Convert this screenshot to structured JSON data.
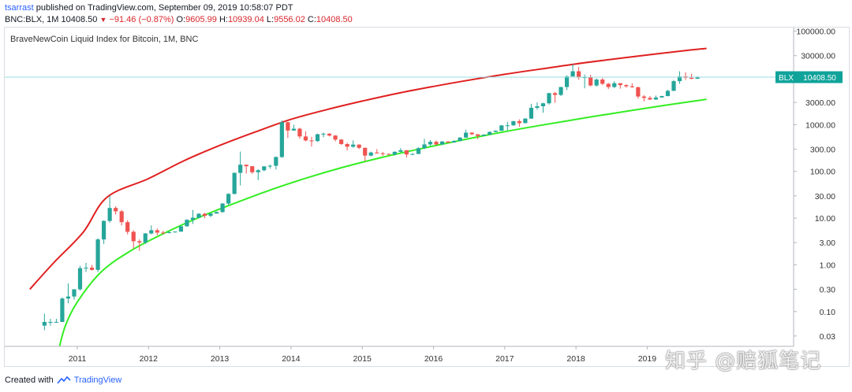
{
  "header": {
    "author": "tsarrast",
    "published_text": "published on TradingView.com, September 09, 2019 10:58:07 PDT",
    "symbol": "BNC:BLX, 1M",
    "last": "10408.50",
    "change_arrow": "▼",
    "change": "−91.46 (−0.87%)",
    "o_label": "O:",
    "o_value": "9605.99",
    "h_label": "H:",
    "h_value": "10939.04",
    "l_label": "L:",
    "l_value": "9556.02",
    "c_label": "C:",
    "c_value": "10408.50"
  },
  "chart_title": "BraveNewCoin Liquid Index for Bitcoin, 1M, BNC",
  "footer": {
    "created_with": "Created with",
    "brand": "TradingView"
  },
  "watermark": "知乎 @赔狐笔记",
  "colors": {
    "up": "#26a69a",
    "down": "#ef5350",
    "upper_curve": "#e02020",
    "lower_curve": "#33ee22",
    "price_line": "#9adbe0",
    "price_tag": "#0fa39a",
    "axis_text": "#333333"
  },
  "chart_data": {
    "type": "candlestick",
    "scale": "log",
    "title": "BraveNewCoin Liquid Index for Bitcoin, 1M, BNC",
    "x_ticks": [
      "2011",
      "2012",
      "2013",
      "2014",
      "2015",
      "2016",
      "2017",
      "2018",
      "2019"
    ],
    "y_ticks": [
      "100000.00",
      "30000.00",
      "10000.00",
      "3000.00",
      "1000.00",
      "300.00",
      "100.00",
      "30.00",
      "10.00",
      "3.00",
      "1.00",
      "0.30",
      "0.10",
      "0.03"
    ],
    "y_tick_values": [
      100000,
      30000,
      10000,
      3000,
      1000,
      300,
      100,
      30,
      10,
      3,
      1,
      0.3,
      0.1,
      0.03
    ],
    "x_range": [
      "2010-04",
      "2019-12"
    ],
    "y_range": [
      0.018,
      120000
    ],
    "last_price_tag": {
      "symbol": "BLX",
      "value": "10408.50"
    },
    "candles": [
      {
        "t": "2010-07",
        "o": 0.05,
        "h": 0.09,
        "l": 0.04,
        "c": 0.06
      },
      {
        "t": "2010-08",
        "o": 0.06,
        "h": 0.07,
        "l": 0.05,
        "c": 0.06
      },
      {
        "t": "2010-09",
        "o": 0.06,
        "h": 0.07,
        "l": 0.06,
        "c": 0.06
      },
      {
        "t": "2010-10",
        "o": 0.06,
        "h": 0.2,
        "l": 0.06,
        "c": 0.19
      },
      {
        "t": "2010-11",
        "o": 0.19,
        "h": 0.4,
        "l": 0.15,
        "c": 0.21
      },
      {
        "t": "2010-12",
        "o": 0.21,
        "h": 0.3,
        "l": 0.18,
        "c": 0.3
      },
      {
        "t": "2011-01",
        "o": 0.3,
        "h": 0.95,
        "l": 0.28,
        "c": 0.85
      },
      {
        "t": "2011-02",
        "o": 0.85,
        "h": 1.1,
        "l": 0.7,
        "c": 0.87
      },
      {
        "t": "2011-03",
        "o": 0.87,
        "h": 1.0,
        "l": 0.75,
        "c": 0.78
      },
      {
        "t": "2011-04",
        "o": 0.78,
        "h": 3.7,
        "l": 0.7,
        "c": 3.5
      },
      {
        "t": "2011-05",
        "o": 3.5,
        "h": 9.0,
        "l": 2.8,
        "c": 8.7
      },
      {
        "t": "2011-06",
        "o": 8.7,
        "h": 30.0,
        "l": 8.0,
        "c": 16.5
      },
      {
        "t": "2011-07",
        "o": 16.5,
        "h": 18.0,
        "l": 12.0,
        "c": 14.0
      },
      {
        "t": "2011-08",
        "o": 14.0,
        "h": 15.0,
        "l": 7.0,
        "c": 8.2
      },
      {
        "t": "2011-09",
        "o": 8.2,
        "h": 9.0,
        "l": 4.5,
        "c": 5.1
      },
      {
        "t": "2011-10",
        "o": 5.1,
        "h": 5.5,
        "l": 2.2,
        "c": 3.2
      },
      {
        "t": "2011-11",
        "o": 3.2,
        "h": 3.5,
        "l": 2.0,
        "c": 3.0
      },
      {
        "t": "2011-12",
        "o": 3.0,
        "h": 4.8,
        "l": 2.8,
        "c": 4.7
      },
      {
        "t": "2012-01",
        "o": 4.7,
        "h": 7.0,
        "l": 4.5,
        "c": 5.5
      },
      {
        "t": "2012-02",
        "o": 5.5,
        "h": 6.0,
        "l": 4.3,
        "c": 4.9
      },
      {
        "t": "2012-03",
        "o": 4.9,
        "h": 5.4,
        "l": 4.5,
        "c": 4.8
      },
      {
        "t": "2012-04",
        "o": 4.8,
        "h": 5.3,
        "l": 4.7,
        "c": 5.0
      },
      {
        "t": "2012-05",
        "o": 5.0,
        "h": 5.2,
        "l": 4.9,
        "c": 5.15
      },
      {
        "t": "2012-06",
        "o": 5.15,
        "h": 6.8,
        "l": 5.1,
        "c": 6.7
      },
      {
        "t": "2012-07",
        "o": 6.7,
        "h": 9.5,
        "l": 6.5,
        "c": 9.2
      },
      {
        "t": "2012-08",
        "o": 9.2,
        "h": 15.0,
        "l": 7.5,
        "c": 10.2
      },
      {
        "t": "2012-09",
        "o": 10.2,
        "h": 12.8,
        "l": 10.0,
        "c": 12.4
      },
      {
        "t": "2012-10",
        "o": 12.4,
        "h": 12.9,
        "l": 10.0,
        "c": 11.2
      },
      {
        "t": "2012-11",
        "o": 11.2,
        "h": 12.8,
        "l": 10.5,
        "c": 12.5
      },
      {
        "t": "2012-12",
        "o": 12.5,
        "h": 13.8,
        "l": 12.5,
        "c": 13.5
      },
      {
        "t": "2013-01",
        "o": 13.5,
        "h": 21.0,
        "l": 13.0,
        "c": 20.5
      },
      {
        "t": "2013-02",
        "o": 20.5,
        "h": 34.0,
        "l": 19.0,
        "c": 33.0
      },
      {
        "t": "2013-03",
        "o": 33.0,
        "h": 95.0,
        "l": 32.0,
        "c": 93.0
      },
      {
        "t": "2013-04",
        "o": 93.0,
        "h": 266.0,
        "l": 50.0,
        "c": 139.0
      },
      {
        "t": "2013-05",
        "o": 139.0,
        "h": 140.0,
        "l": 90.0,
        "c": 129.0
      },
      {
        "t": "2013-06",
        "o": 129.0,
        "h": 130.0,
        "l": 89.0,
        "c": 96.0
      },
      {
        "t": "2013-07",
        "o": 96.0,
        "h": 112.0,
        "l": 65.0,
        "c": 106.0
      },
      {
        "t": "2013-08",
        "o": 106.0,
        "h": 130.0,
        "l": 100.0,
        "c": 128.0
      },
      {
        "t": "2013-09",
        "o": 128.0,
        "h": 140.0,
        "l": 115.0,
        "c": 132.0
      },
      {
        "t": "2013-10",
        "o": 132.0,
        "h": 210.0,
        "l": 110.0,
        "c": 203.0
      },
      {
        "t": "2013-11",
        "o": 203.0,
        "h": 1240.0,
        "l": 195.0,
        "c": 1130.0
      },
      {
        "t": "2013-12",
        "o": 1130.0,
        "h": 1150.0,
        "l": 520.0,
        "c": 750.0
      },
      {
        "t": "2014-01",
        "o": 750.0,
        "h": 1000.0,
        "l": 740.0,
        "c": 820.0
      },
      {
        "t": "2014-02",
        "o": 820.0,
        "h": 860.0,
        "l": 500.0,
        "c": 560.0
      },
      {
        "t": "2014-03",
        "o": 560.0,
        "h": 720.0,
        "l": 440.0,
        "c": 460.0
      },
      {
        "t": "2014-04",
        "o": 460.0,
        "h": 550.0,
        "l": 340.0,
        "c": 445.0
      },
      {
        "t": "2014-05",
        "o": 445.0,
        "h": 640.0,
        "l": 430.0,
        "c": 625.0
      },
      {
        "t": "2014-06",
        "o": 625.0,
        "h": 680.0,
        "l": 540.0,
        "c": 640.0
      },
      {
        "t": "2014-07",
        "o": 640.0,
        "h": 660.0,
        "l": 560.0,
        "c": 585.0
      },
      {
        "t": "2014-08",
        "o": 585.0,
        "h": 600.0,
        "l": 440.0,
        "c": 480.0
      },
      {
        "t": "2014-09",
        "o": 480.0,
        "h": 490.0,
        "l": 370.0,
        "c": 385.0
      },
      {
        "t": "2014-10",
        "o": 385.0,
        "h": 410.0,
        "l": 280.0,
        "c": 338.0
      },
      {
        "t": "2014-11",
        "o": 338.0,
        "h": 460.0,
        "l": 320.0,
        "c": 375.0
      },
      {
        "t": "2014-12",
        "o": 375.0,
        "h": 380.0,
        "l": 300.0,
        "c": 320.0
      },
      {
        "t": "2015-01",
        "o": 320.0,
        "h": 320.0,
        "l": 165.0,
        "c": 218.0
      },
      {
        "t": "2015-02",
        "o": 218.0,
        "h": 265.0,
        "l": 210.0,
        "c": 254.0
      },
      {
        "t": "2015-03",
        "o": 254.0,
        "h": 300.0,
        "l": 240.0,
        "c": 244.0
      },
      {
        "t": "2015-04",
        "o": 244.0,
        "h": 260.0,
        "l": 215.0,
        "c": 236.0
      },
      {
        "t": "2015-05",
        "o": 236.0,
        "h": 245.0,
        "l": 228.0,
        "c": 230.0
      },
      {
        "t": "2015-06",
        "o": 230.0,
        "h": 268.0,
        "l": 218.0,
        "c": 263.0
      },
      {
        "t": "2015-07",
        "o": 263.0,
        "h": 315.0,
        "l": 255.0,
        "c": 284.0
      },
      {
        "t": "2015-08",
        "o": 284.0,
        "h": 285.0,
        "l": 198.0,
        "c": 230.0
      },
      {
        "t": "2015-09",
        "o": 230.0,
        "h": 245.0,
        "l": 225.0,
        "c": 236.0
      },
      {
        "t": "2015-10",
        "o": 236.0,
        "h": 330.0,
        "l": 235.0,
        "c": 314.0
      },
      {
        "t": "2015-11",
        "o": 314.0,
        "h": 500.0,
        "l": 300.0,
        "c": 378.0
      },
      {
        "t": "2015-12",
        "o": 378.0,
        "h": 470.0,
        "l": 350.0,
        "c": 430.0
      },
      {
        "t": "2016-01",
        "o": 430.0,
        "h": 460.0,
        "l": 360.0,
        "c": 378.0
      },
      {
        "t": "2016-02",
        "o": 378.0,
        "h": 445.0,
        "l": 370.0,
        "c": 437.0
      },
      {
        "t": "2016-03",
        "o": 437.0,
        "h": 440.0,
        "l": 405.0,
        "c": 416.0
      },
      {
        "t": "2016-04",
        "o": 416.0,
        "h": 465.0,
        "l": 412.0,
        "c": 448.0
      },
      {
        "t": "2016-05",
        "o": 448.0,
        "h": 540.0,
        "l": 440.0,
        "c": 530.0
      },
      {
        "t": "2016-06",
        "o": 530.0,
        "h": 780.0,
        "l": 525.0,
        "c": 675.0
      },
      {
        "t": "2016-07",
        "o": 675.0,
        "h": 700.0,
        "l": 600.0,
        "c": 624.0
      },
      {
        "t": "2016-08",
        "o": 624.0,
        "h": 625.0,
        "l": 490.0,
        "c": 575.0
      },
      {
        "t": "2016-09",
        "o": 575.0,
        "h": 625.0,
        "l": 570.0,
        "c": 610.0
      },
      {
        "t": "2016-10",
        "o": 610.0,
        "h": 720.0,
        "l": 605.0,
        "c": 700.0
      },
      {
        "t": "2016-11",
        "o": 700.0,
        "h": 750.0,
        "l": 690.0,
        "c": 742.0
      },
      {
        "t": "2016-12",
        "o": 742.0,
        "h": 980.0,
        "l": 740.0,
        "c": 965.0
      },
      {
        "t": "2017-01",
        "o": 965.0,
        "h": 1150.0,
        "l": 750.0,
        "c": 970.0
      },
      {
        "t": "2017-02",
        "o": 970.0,
        "h": 1200.0,
        "l": 940.0,
        "c": 1190.0
      },
      {
        "t": "2017-03",
        "o": 1190.0,
        "h": 1300.0,
        "l": 900.0,
        "c": 1080.0
      },
      {
        "t": "2017-04",
        "o": 1080.0,
        "h": 1380.0,
        "l": 1070.0,
        "c": 1350.0
      },
      {
        "t": "2017-05",
        "o": 1350.0,
        "h": 2800.0,
        "l": 1330.0,
        "c": 2300.0
      },
      {
        "t": "2017-06",
        "o": 2300.0,
        "h": 3000.0,
        "l": 2100.0,
        "c": 2480.0
      },
      {
        "t": "2017-07",
        "o": 2480.0,
        "h": 2950.0,
        "l": 1800.0,
        "c": 2870.0
      },
      {
        "t": "2017-08",
        "o": 2870.0,
        "h": 4800.0,
        "l": 2700.0,
        "c": 4740.0
      },
      {
        "t": "2017-09",
        "o": 4740.0,
        "h": 5000.0,
        "l": 2950.0,
        "c": 4340.0
      },
      {
        "t": "2017-10",
        "o": 4340.0,
        "h": 6450.0,
        "l": 4100.0,
        "c": 6400.0
      },
      {
        "t": "2017-11",
        "o": 6400.0,
        "h": 11400.0,
        "l": 5500.0,
        "c": 10800.0
      },
      {
        "t": "2017-12",
        "o": 10800.0,
        "h": 19800.0,
        "l": 10700.0,
        "c": 13900.0
      },
      {
        "t": "2018-01",
        "o": 13900.0,
        "h": 17200.0,
        "l": 9200.0,
        "c": 10200.0
      },
      {
        "t": "2018-02",
        "o": 10200.0,
        "h": 11800.0,
        "l": 6000.0,
        "c": 10400.0
      },
      {
        "t": "2018-03",
        "o": 10400.0,
        "h": 11700.0,
        "l": 6600.0,
        "c": 6900.0
      },
      {
        "t": "2018-04",
        "o": 6900.0,
        "h": 9800.0,
        "l": 6500.0,
        "c": 9250.0
      },
      {
        "t": "2018-05",
        "o": 9250.0,
        "h": 9990.0,
        "l": 7100.0,
        "c": 7500.0
      },
      {
        "t": "2018-06",
        "o": 7500.0,
        "h": 7800.0,
        "l": 5800.0,
        "c": 6400.0
      },
      {
        "t": "2018-07",
        "o": 6400.0,
        "h": 8500.0,
        "l": 6100.0,
        "c": 7730.0
      },
      {
        "t": "2018-08",
        "o": 7730.0,
        "h": 7760.0,
        "l": 5880.0,
        "c": 7030.0
      },
      {
        "t": "2018-09",
        "o": 7030.0,
        "h": 7400.0,
        "l": 6200.0,
        "c": 6630.0
      },
      {
        "t": "2018-10",
        "o": 6630.0,
        "h": 7700.0,
        "l": 6200.0,
        "c": 6330.0
      },
      {
        "t": "2018-11",
        "o": 6330.0,
        "h": 6540.0,
        "l": 3600.0,
        "c": 4010.0
      },
      {
        "t": "2018-12",
        "o": 4010.0,
        "h": 4300.0,
        "l": 3150.0,
        "c": 3740.0
      },
      {
        "t": "2019-01",
        "o": 3740.0,
        "h": 4100.0,
        "l": 3380.0,
        "c": 3460.0
      },
      {
        "t": "2019-02",
        "o": 3460.0,
        "h": 4200.0,
        "l": 3380.0,
        "c": 3820.0
      },
      {
        "t": "2019-03",
        "o": 3820.0,
        "h": 4150.0,
        "l": 3780.0,
        "c": 4100.0
      },
      {
        "t": "2019-04",
        "o": 4100.0,
        "h": 5600.0,
        "l": 4050.0,
        "c": 5300.0
      },
      {
        "t": "2019-05",
        "o": 5300.0,
        "h": 9100.0,
        "l": 5300.0,
        "c": 8550.0
      },
      {
        "t": "2019-06",
        "o": 8550.0,
        "h": 13900.0,
        "l": 7500.0,
        "c": 10800.0
      },
      {
        "t": "2019-07",
        "o": 10800.0,
        "h": 13200.0,
        "l": 9100.0,
        "c": 10100.0
      },
      {
        "t": "2019-08",
        "o": 10100.0,
        "h": 12300.0,
        "l": 9400.0,
        "c": 9600.0
      },
      {
        "t": "2019-09",
        "o": 9605.99,
        "h": 10939.04,
        "l": 9556.02,
        "c": 10408.5
      }
    ],
    "upper_curve": [
      {
        "t": "2010-05",
        "v": 0.3
      },
      {
        "t": "2010-09",
        "v": 1.1
      },
      {
        "t": "2011-02",
        "v": 5.0
      },
      {
        "t": "2011-06",
        "v": 28.0
      },
      {
        "t": "2012-01",
        "v": 70.0
      },
      {
        "t": "2012-07",
        "v": 170.0
      },
      {
        "t": "2013-01",
        "v": 360.0
      },
      {
        "t": "2013-07",
        "v": 700.0
      },
      {
        "t": "2014-01",
        "v": 1300.0
      },
      {
        "t": "2014-07",
        "v": 2100.0
      },
      {
        "t": "2015-01",
        "v": 3200.0
      },
      {
        "t": "2015-07",
        "v": 4700.0
      },
      {
        "t": "2016-01",
        "v": 6600.0
      },
      {
        "t": "2016-07",
        "v": 9000.0
      },
      {
        "t": "2017-01",
        "v": 12000.0
      },
      {
        "t": "2017-07",
        "v": 15500.0
      },
      {
        "t": "2018-01",
        "v": 20000.0
      },
      {
        "t": "2018-07",
        "v": 25000.0
      },
      {
        "t": "2019-01",
        "v": 31000.0
      },
      {
        "t": "2019-07",
        "v": 38000.0
      },
      {
        "t": "2019-11",
        "v": 43000.0
      }
    ],
    "lower_curve": [
      {
        "t": "2010-10",
        "v": 0.018
      },
      {
        "t": "2010-11",
        "v": 0.05
      },
      {
        "t": "2011-01",
        "v": 0.16
      },
      {
        "t": "2011-05",
        "v": 0.7
      },
      {
        "t": "2011-10",
        "v": 2.0
      },
      {
        "t": "2012-04",
        "v": 5.0
      },
      {
        "t": "2012-10",
        "v": 11.0
      },
      {
        "t": "2013-04",
        "v": 22.0
      },
      {
        "t": "2013-10",
        "v": 42.0
      },
      {
        "t": "2014-04",
        "v": 75.0
      },
      {
        "t": "2014-10",
        "v": 125.0
      },
      {
        "t": "2015-04",
        "v": 195.0
      },
      {
        "t": "2015-10",
        "v": 290.0
      },
      {
        "t": "2016-04",
        "v": 420.0
      },
      {
        "t": "2016-10",
        "v": 600.0
      },
      {
        "t": "2017-04",
        "v": 830.0
      },
      {
        "t": "2017-10",
        "v": 1120.0
      },
      {
        "t": "2018-04",
        "v": 1500.0
      },
      {
        "t": "2018-10",
        "v": 1980.0
      },
      {
        "t": "2019-04",
        "v": 2600.0
      },
      {
        "t": "2019-10",
        "v": 3350.0
      },
      {
        "t": "2019-11",
        "v": 3500.0
      }
    ]
  }
}
